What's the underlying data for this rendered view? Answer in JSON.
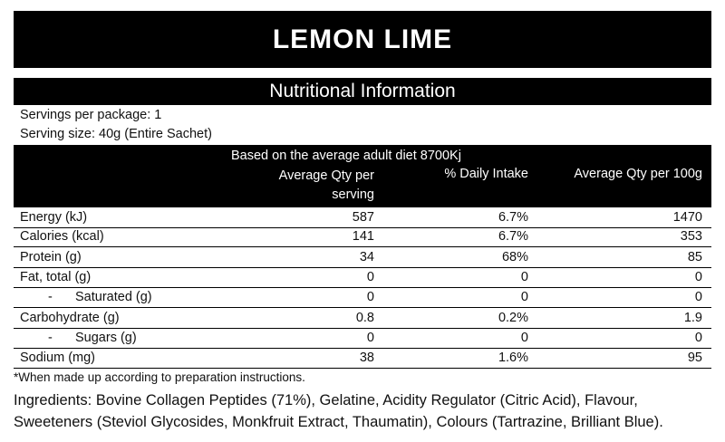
{
  "header": {
    "title": "LEMON LIME",
    "subtitle": "Nutritional Information"
  },
  "servings": [
    "Servings per package: 1",
    "Serving size: 40g (Entire Sachet)"
  ],
  "table": {
    "caption": "Based on the average adult diet 8700Kj",
    "columns": [
      "Average Qty per serving",
      "% Daily Intake",
      "Average Qty per 100g"
    ],
    "rows": [
      {
        "label": "Energy (kJ)",
        "cells": [
          "587",
          "6.7%",
          "1470"
        ]
      },
      {
        "label": "Calories (kcal)",
        "cells": [
          "141",
          "6.7%",
          "353"
        ]
      },
      {
        "label": "Protein (g)",
        "cells": [
          "34",
          "68%",
          "85"
        ]
      },
      {
        "label": "Fat, total (g)",
        "cells": [
          "0",
          "0",
          "0"
        ]
      },
      {
        "marker": "-",
        "label": "Saturated (g)",
        "cells": [
          "0",
          "0",
          "0"
        ]
      },
      {
        "label": "Carbohydrate (g)",
        "cells": [
          "0.8",
          "0.2%",
          "1.9"
        ]
      },
      {
        "marker": "-",
        "label": "Sugars (g)",
        "cells": [
          "0",
          "0",
          "0"
        ]
      },
      {
        "label": "Sodium (mg)",
        "cells": [
          "38",
          "1.6%",
          "95"
        ]
      }
    ]
  },
  "footnote": "*When made up according to preparation instructions.",
  "ingredients": {
    "heading": "Ingredients:",
    "text": "Bovine Collagen Peptides (71%), Gelatine, Acidity Regulator (Citric Acid), Flavour, Sweeteners (Steviol Glycosides, Monkfruit Extract, Thaumatin), Colours (Tartrazine, Brilliant Blue)."
  }
}
